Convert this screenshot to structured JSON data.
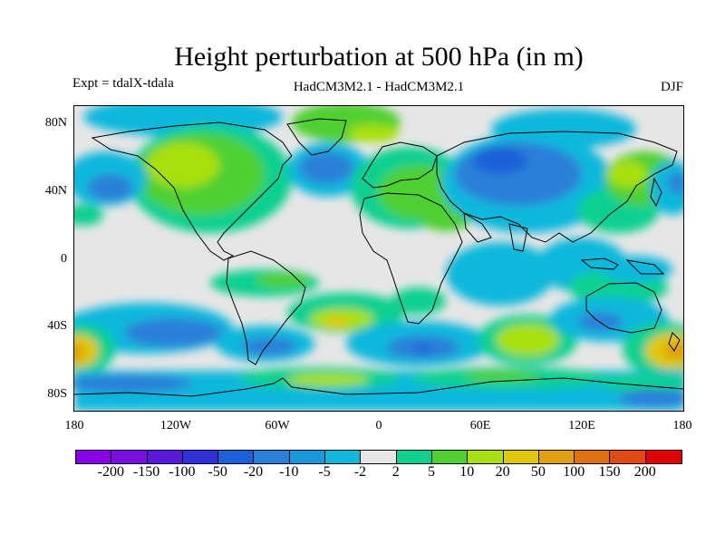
{
  "title": "Height perturbation at 500 hPa (in m)",
  "expt_label": "Expt = tdalX-tdala",
  "model_label": "HadCM3M2.1 - HadCM3M2.1",
  "season_label": "DJF",
  "y_axis_labels": [
    "80N",
    "40N",
    "0",
    "40S",
    "80S"
  ],
  "x_axis_labels": [
    "180",
    "120W",
    "60W",
    "0",
    "60E",
    "120E",
    "180"
  ],
  "colorbar": {
    "colors": [
      "#8a00e6",
      "#7a10e0",
      "#5a18d8",
      "#3030d8",
      "#1a60d8",
      "#2a80d8",
      "#1a98dc",
      "#10b8dc",
      "#e6e6e6",
      "#10d090",
      "#50d030",
      "#a8e010",
      "#e0c810",
      "#e0a010",
      "#e07010",
      "#e04a10",
      "#e00000"
    ],
    "labels": [
      "-200",
      "-150",
      "-100",
      "-50",
      "-20",
      "-10",
      "-5",
      "-2",
      "2",
      "5",
      "10",
      "20",
      "50",
      "100",
      "150",
      "200"
    ]
  },
  "chart_data": {
    "type": "heatmap",
    "title": "Height perturbation at 500 hPa (in m)",
    "x_ticks": [
      "180",
      "120W",
      "60W",
      "0",
      "60E",
      "120E",
      "180"
    ],
    "y_ticks": [
      "80N",
      "40N",
      "0",
      "40S",
      "80S"
    ],
    "xlim": [
      -180,
      180
    ],
    "ylim": [
      -90,
      90
    ],
    "levels": [
      -200,
      -150,
      -100,
      -50,
      -20,
      -10,
      -5,
      -2,
      2,
      5,
      10,
      20,
      50,
      100,
      150,
      200
    ],
    "units": "m"
  }
}
